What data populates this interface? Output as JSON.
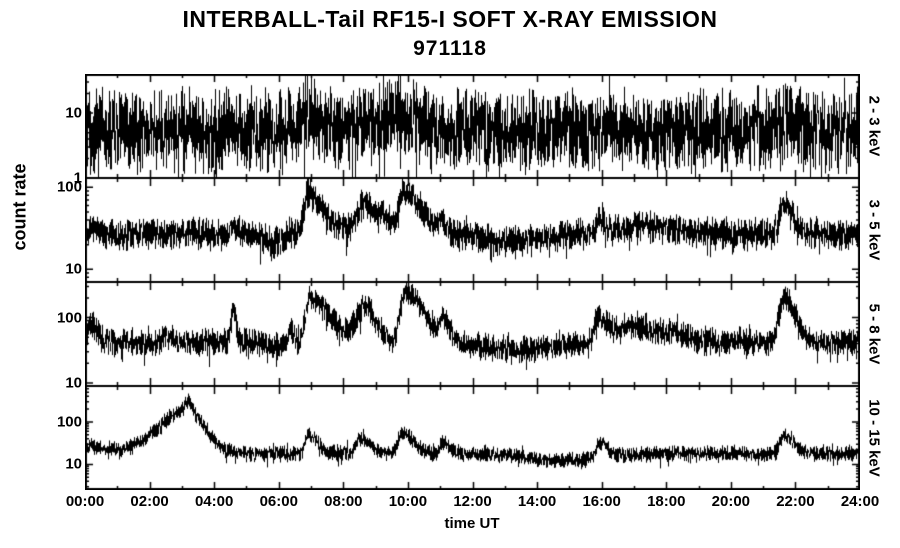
{
  "chart_data": {
    "type": "line",
    "title": "INTERBALL-Tail RF15-I SOFT X-RAY EMISSION",
    "subtitle": "971118",
    "xlabel": "time UT",
    "ylabel": "count rate",
    "line_color": "#000000",
    "background_color": "#ffffff",
    "grid": false,
    "xlim": [
      0,
      24
    ],
    "x_tick_hours": [
      0,
      2,
      4,
      6,
      8,
      10,
      12,
      14,
      16,
      18,
      20,
      22,
      24
    ],
    "x_tick_labels": [
      "00:00",
      "02:00",
      "04:00",
      "06:00",
      "08:00",
      "10:00",
      "12:00",
      "14:00",
      "16:00",
      "18:00",
      "20:00",
      "22:00",
      "24:00"
    ],
    "panels": [
      {
        "label": "2 - 3 keV",
        "yscale": "log",
        "ylim": [
          1,
          40
        ],
        "y_ticks": [
          10,
          1
        ],
        "baseline_count_rate": 5.5,
        "noise_dex": 0.42,
        "peaks": [
          {
            "t_hours": 6.9,
            "factor": 1.6,
            "rise_h": 0.15,
            "decay_h": 0.35
          },
          {
            "t_hours": 8.7,
            "factor": 1.4,
            "rise_h": 0.2,
            "decay_h": 0.3
          },
          {
            "t_hours": 9.8,
            "factor": 1.9,
            "rise_h": 0.35,
            "decay_h": 0.55
          },
          {
            "t_hours": 21.7,
            "factor": 1.35,
            "rise_h": 0.1,
            "decay_h": 0.25
          }
        ]
      },
      {
        "label": "3 - 5 keV",
        "yscale": "log",
        "ylim": [
          7,
          130
        ],
        "y_ticks": [
          100,
          10
        ],
        "baseline_count_rate": 27,
        "noise_dex": 0.13,
        "peaks": [
          {
            "t_hours": 0.2,
            "factor": 1.3,
            "rise_h": 0.05,
            "decay_h": 0.15
          },
          {
            "t_hours": 4.55,
            "factor": 1.4,
            "rise_h": 0.05,
            "decay_h": 0.12
          },
          {
            "t_hours": 6.0,
            "factor": 0.78,
            "rise_h": 0.35,
            "decay_h": 0.15
          },
          {
            "t_hours": 6.9,
            "factor": 3.0,
            "rise_h": 0.12,
            "decay_h": 0.5
          },
          {
            "t_hours": 8.65,
            "factor": 2.3,
            "rise_h": 0.25,
            "decay_h": 0.35
          },
          {
            "t_hours": 9.3,
            "factor": 1.5,
            "rise_h": 0.2,
            "decay_h": 0.2
          },
          {
            "t_hours": 9.85,
            "factor": 3.3,
            "rise_h": 0.12,
            "decay_h": 0.55
          },
          {
            "t_hours": 11.0,
            "factor": 1.3,
            "rise_h": 0.08,
            "decay_h": 0.2
          },
          {
            "t_hours": 13.2,
            "factor": 0.82,
            "rise_h": 1.0,
            "decay_h": 1.0
          },
          {
            "t_hours": 15.9,
            "factor": 1.5,
            "rise_h": 0.06,
            "decay_h": 0.18
          },
          {
            "t_hours": 17.6,
            "factor": 1.25,
            "rise_h": 0.9,
            "decay_h": 0.9
          },
          {
            "t_hours": 21.65,
            "factor": 2.4,
            "rise_h": 0.12,
            "decay_h": 0.3
          }
        ]
      },
      {
        "label": "5 - 8 keV",
        "yscale": "log",
        "ylim": [
          9,
          350
        ],
        "y_ticks": [
          100,
          10
        ],
        "baseline_count_rate": 42,
        "noise_dex": 0.14,
        "peaks": [
          {
            "t_hours": 0.15,
            "factor": 1.9,
            "rise_h": 0.05,
            "decay_h": 0.2
          },
          {
            "t_hours": 2.5,
            "factor": 1.25,
            "rise_h": 0.1,
            "decay_h": 0.2
          },
          {
            "t_hours": 4.55,
            "factor": 3.4,
            "rise_h": 0.04,
            "decay_h": 0.12
          },
          {
            "t_hours": 6.0,
            "factor": 0.8,
            "rise_h": 0.3,
            "decay_h": 0.12
          },
          {
            "t_hours": 6.35,
            "factor": 1.5,
            "rise_h": 0.05,
            "decay_h": 0.1
          },
          {
            "t_hours": 6.95,
            "factor": 4.8,
            "rise_h": 0.12,
            "decay_h": 0.6
          },
          {
            "t_hours": 8.65,
            "factor": 3.4,
            "rise_h": 0.25,
            "decay_h": 0.35
          },
          {
            "t_hours": 9.9,
            "factor": 5.8,
            "rise_h": 0.15,
            "decay_h": 0.6
          },
          {
            "t_hours": 11.05,
            "factor": 2.0,
            "rise_h": 0.08,
            "decay_h": 0.25
          },
          {
            "t_hours": 13.3,
            "factor": 0.78,
            "rise_h": 1.2,
            "decay_h": 1.2
          },
          {
            "t_hours": 15.85,
            "factor": 2.4,
            "rise_h": 0.1,
            "decay_h": 0.4
          },
          {
            "t_hours": 16.9,
            "factor": 1.7,
            "rise_h": 0.3,
            "decay_h": 0.5
          },
          {
            "t_hours": 18.1,
            "factor": 1.35,
            "rise_h": 0.6,
            "decay_h": 0.6
          },
          {
            "t_hours": 21.65,
            "factor": 4.8,
            "rise_h": 0.15,
            "decay_h": 0.35
          }
        ]
      },
      {
        "label": "10 - 15 keV",
        "yscale": "log",
        "ylim": [
          2.5,
          700
        ],
        "y_ticks": [
          100,
          10
        ],
        "baseline_count_rate": 18,
        "noise_dex": 0.13,
        "peaks": [
          {
            "t_hours": 0.0,
            "factor": 1.5,
            "rise_h": 0.1,
            "decay_h": 0.7
          },
          {
            "t_hours": 3.15,
            "factor": 11.0,
            "rise_h": 0.85,
            "decay_h": 0.55
          },
          {
            "t_hours": 3.2,
            "factor": 1.6,
            "rise_h": 0.08,
            "decay_h": 0.1
          },
          {
            "t_hours": 6.9,
            "factor": 3.0,
            "rise_h": 0.08,
            "decay_h": 0.3
          },
          {
            "t_hours": 8.5,
            "factor": 2.4,
            "rise_h": 0.1,
            "decay_h": 0.3
          },
          {
            "t_hours": 9.8,
            "factor": 3.2,
            "rise_h": 0.1,
            "decay_h": 0.35
          },
          {
            "t_hours": 11.05,
            "factor": 2.0,
            "rise_h": 0.06,
            "decay_h": 0.2
          },
          {
            "t_hours": 14.8,
            "factor": 0.68,
            "rise_h": 1.0,
            "decay_h": 1.0
          },
          {
            "t_hours": 15.9,
            "factor": 2.2,
            "rise_h": 0.08,
            "decay_h": 0.25
          },
          {
            "t_hours": 21.65,
            "factor": 2.7,
            "rise_h": 0.12,
            "decay_h": 0.3
          }
        ]
      }
    ]
  }
}
